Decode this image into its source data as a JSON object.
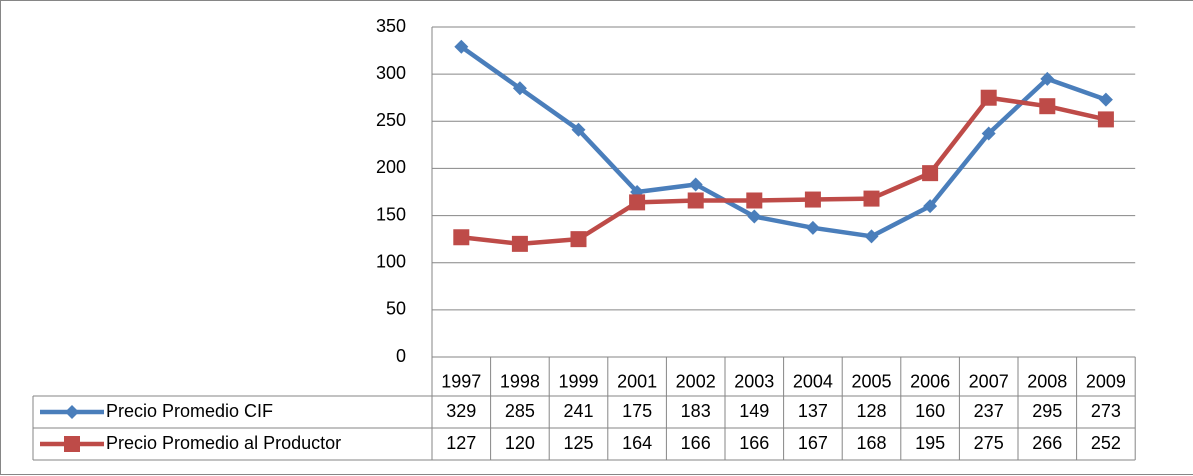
{
  "chart_data": {
    "type": "line",
    "categories": [
      "1997",
      "1998",
      "1999",
      "2001",
      "2002",
      "2003",
      "2004",
      "2005",
      "2006",
      "2007",
      "2008",
      "2009"
    ],
    "series": [
      {
        "name": "Precio Promedio CIF",
        "color": "#4a7ebb",
        "marker": "diamond",
        "values": [
          329,
          285,
          241,
          175,
          183,
          149,
          137,
          128,
          160,
          237,
          295,
          273
        ]
      },
      {
        "name": "Precio Promedio al Productor",
        "color": "#be4b48",
        "marker": "square",
        "values": [
          127,
          120,
          125,
          164,
          166,
          166,
          167,
          168,
          195,
          275,
          266,
          252
        ]
      }
    ],
    "ylim": [
      0,
      350
    ],
    "yticks": [
      0,
      50,
      100,
      150,
      200,
      250,
      300,
      350
    ],
    "grid": true,
    "data_table": true
  }
}
